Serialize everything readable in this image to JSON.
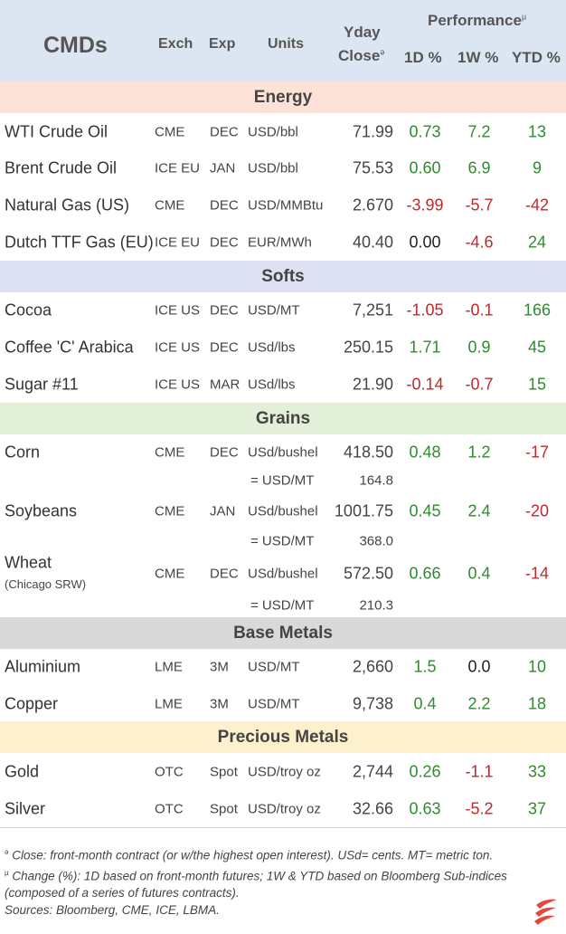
{
  "header": {
    "title": "CMDs",
    "exch": "Exch",
    "exp": "Exp",
    "units": "Units",
    "yday": "Yday",
    "close": "Close",
    "close_mark": "ə",
    "performance": "Performance",
    "performance_mark": "µ",
    "d1": "1D %",
    "w1": "1W %",
    "ytd": "YTD %"
  },
  "sections": {
    "energy": "Energy",
    "softs": "Softs",
    "grains": "Grains",
    "base_metals": "Base Metals",
    "precious_metals": "Precious Metals"
  },
  "energy": [
    {
      "name": "WTI Crude Oil",
      "exch": "CME",
      "exp": "DEC",
      "units": "USD/bbl",
      "close": "71.99",
      "d1": "0.73",
      "w1": "7.2",
      "ytd": "13"
    },
    {
      "name": "Brent Crude Oil",
      "exch": "ICE EU",
      "exp": "JAN",
      "units": "USD/bbl",
      "close": "75.53",
      "d1": "0.60",
      "w1": "6.9",
      "ytd": "9"
    },
    {
      "name": "Natural Gas (US)",
      "exch": "CME",
      "exp": "DEC",
      "units": "USD/MMBtu",
      "close": "2.670",
      "d1": "-3.99",
      "w1": "-5.7",
      "ytd": "-42"
    },
    {
      "name": "Dutch TTF Gas (EU)",
      "exch": "ICE EU",
      "exp": "DEC",
      "units": "EUR/MWh",
      "close": "40.40",
      "d1": "0.00",
      "w1": "-4.6",
      "ytd": "24"
    }
  ],
  "softs": [
    {
      "name": "Cocoa",
      "exch": "ICE US",
      "exp": "DEC",
      "units": "USD/MT",
      "close": "7,251",
      "d1": "-1.05",
      "w1": "-0.1",
      "ytd": "166"
    },
    {
      "name": "Coffee 'C' Arabica",
      "exch": "ICE US",
      "exp": "DEC",
      "units": "USd/lbs",
      "close": "250.15",
      "d1": "1.71",
      "w1": "0.9",
      "ytd": "45"
    },
    {
      "name": "Sugar #11",
      "exch": "ICE US",
      "exp": "MAR",
      "units": "USd/lbs",
      "close": "21.90",
      "d1": "-0.14",
      "w1": "-0.7",
      "ytd": "15"
    }
  ],
  "grains": [
    {
      "name": "Corn",
      "exch": "CME",
      "exp": "DEC",
      "units": "USd/bushel",
      "close": "418.50",
      "d1": "0.48",
      "w1": "1.2",
      "ytd": "-17",
      "sub_units": "= USD/MT",
      "sub_val": "164.8"
    },
    {
      "name": "Soybeans",
      "exch": "CME",
      "exp": "JAN",
      "units": "USd/bushel",
      "close": "1001.75",
      "d1": "0.45",
      "w1": "2.4",
      "ytd": "-20",
      "sub_units": "= USD/MT",
      "sub_val": "368.0"
    },
    {
      "name": "Wheat",
      "name_sub": "(Chicago SRW)",
      "exch": "CME",
      "exp": "DEC",
      "units": "USd/bushel",
      "close": "572.50",
      "d1": "0.66",
      "w1": "0.4",
      "ytd": "-14",
      "sub_units": "= USD/MT",
      "sub_val": "210.3"
    }
  ],
  "base_metals": [
    {
      "name": "Aluminium",
      "exch": "LME",
      "exp": "3M",
      "units": "USD/MT",
      "close": "2,660",
      "d1": "1.5",
      "w1": "0.0",
      "ytd": "10"
    },
    {
      "name": "Copper",
      "exch": "LME",
      "exp": "3M",
      "units": "USD/MT",
      "close": "9,738",
      "d1": "0.4",
      "w1": "2.2",
      "ytd": "18"
    }
  ],
  "precious_metals": [
    {
      "name": "Gold",
      "exch": "OTC",
      "exp": "Spot",
      "units": "USD/troy oz",
      "close": "2,744",
      "d1": "0.26",
      "w1": "-1.1",
      "ytd": "33"
    },
    {
      "name": "Silver",
      "exch": "OTC",
      "exp": "Spot",
      "units": "USD/troy oz",
      "close": "32.66",
      "d1": "0.63",
      "w1": "-5.2",
      "ytd": "37"
    }
  ],
  "notes": {
    "close_mark": "ə",
    "close_note": " Close: front-month contract (or w/the highest open interest). USd= cents. MT= metric ton.",
    "change_mark": "µ",
    "change_note": " Change (%): 1D based on front-month futures; 1W & YTD based on Bloomberg Sub-indices (composed of a series of futures contracts).",
    "sources": "Sources: Bloomberg, CME, ICE, LBMA."
  },
  "colors": {
    "header_bg": "#dce6f2",
    "energy_bg": "#fde3d7",
    "softs_bg": "#dde1f1",
    "grains_bg": "#e2efd9",
    "base_metals_bg": "#d9d9d9",
    "precious_metals_bg": "#fdf0cc",
    "positive": "#2e8b2e",
    "negative": "#c0282c",
    "logo": "#e8453c"
  },
  "logo_icon": "stacked-swoosh-logo"
}
